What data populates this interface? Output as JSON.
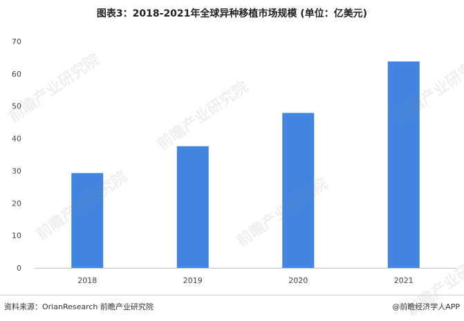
{
  "title": "图表3：2018-2021年全球异种移植市场规模 (单位：亿美元)",
  "footer": {
    "source": "资料来源：OrianResearch 前瞻产业研究院",
    "credit": "@前瞻经济学人APP"
  },
  "watermark": "前瞻产业研究院",
  "colors": {
    "bar": "#4285e0",
    "axis": "#bfbfbf"
  },
  "chart_data": {
    "type": "bar",
    "title": "图表3：2018-2021年全球异种移植市场规模 (单位：亿美元)",
    "xlabel": "",
    "ylabel": "",
    "categories": [
      "2018",
      "2019",
      "2020",
      "2021"
    ],
    "values": [
      29.3,
      37.6,
      47.9,
      63.8
    ],
    "ylim": [
      0,
      70
    ],
    "yticks": [
      0,
      10,
      20,
      30,
      40,
      50,
      60,
      70
    ],
    "grid": false,
    "legend": "none"
  }
}
